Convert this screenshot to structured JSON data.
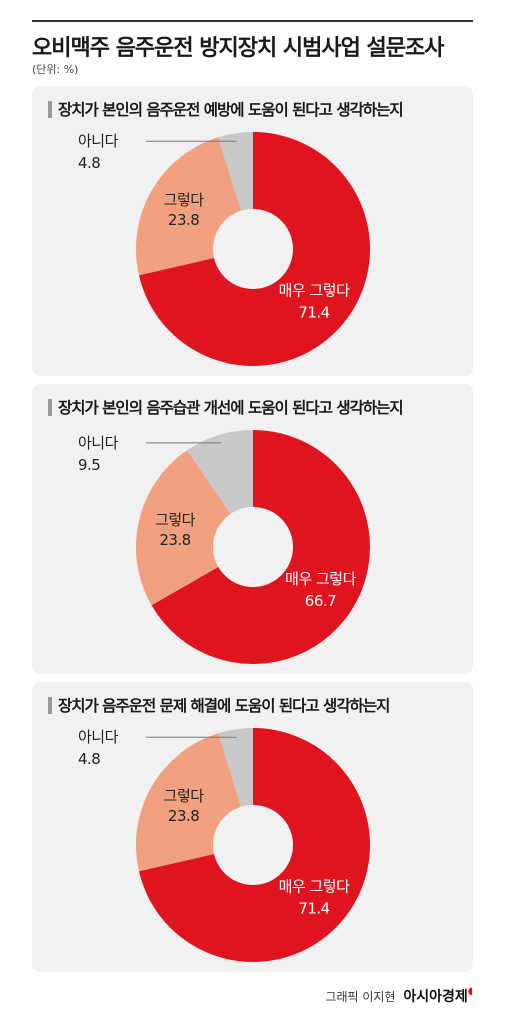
{
  "header": {
    "title": "오비맥주 음주운전 방지장치 시범사업 설문조사",
    "unit": "(단위: %)"
  },
  "colors": {
    "very_yes": "#e0141f",
    "yes": "#f1a17f",
    "no": "#c8c8c8",
    "panel_bg": "#f1f1f1"
  },
  "chart_data": [
    {
      "type": "pie",
      "title": "장치가 본인의 음주운전 예방에 도움이 된다고 생각하는지",
      "categories": [
        "매우 그렇다",
        "그렇다",
        "아니다"
      ],
      "values": [
        71.4,
        23.8,
        4.8
      ],
      "value_labels": [
        "71.4",
        "23.8",
        "4.8"
      ],
      "legend": "none"
    },
    {
      "type": "pie",
      "title": "장치가 본인의 음주습관 개선에 도움이 된다고 생각하는지",
      "categories": [
        "매우 그렇다",
        "그렇다",
        "아니다"
      ],
      "values": [
        66.7,
        23.8,
        9.5
      ],
      "value_labels": [
        "66.7",
        "23.8",
        "9.5"
      ],
      "legend": "none"
    },
    {
      "type": "pie",
      "title": "장치가 음주운전 문제 해결에 도움이 된다고 생각하는지",
      "categories": [
        "매우 그렇다",
        "그렇다",
        "아니다"
      ],
      "values": [
        71.4,
        23.8,
        4.8
      ],
      "value_labels": [
        "71.4",
        "23.8",
        "4.8"
      ],
      "legend": "none"
    }
  ],
  "footer": {
    "credit": "그래픽 이지현",
    "logo": "아시아경제"
  }
}
